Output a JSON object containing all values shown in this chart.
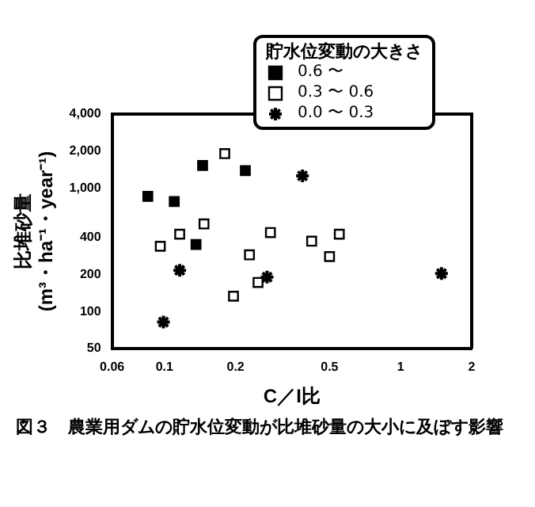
{
  "chart_data": {
    "type": "scatter",
    "xlabel": "C／I比",
    "ylabel": "比堆砂量 (m³・ha⁻¹・year⁻¹)",
    "legend_title": "貯水位変動の大きさ",
    "legend": "top right",
    "log": "xy",
    "grid": false,
    "xlim": [
      0.06,
      2
    ],
    "xticks": [
      0.06,
      0.1,
      0.2,
      0.5,
      1,
      2
    ],
    "ylim": [
      50,
      4000
    ],
    "yticks": [
      50,
      100,
      200,
      400,
      {
        "value": 1000,
        "label": "1,000"
      },
      {
        "value": 2000,
        "label": "2,000"
      },
      {
        "value": 4000,
        "label": "4,000"
      }
    ],
    "series": [
      {
        "name": "0.6 〜",
        "color": "#000000",
        "marker": "square",
        "x": [
          0.085,
          0.11,
          0.145,
          0.22,
          0.136
        ],
        "values": [
          860,
          780,
          1530,
          1390,
          350
        ]
      },
      {
        "name": "0.3 〜 0.6",
        "color": "#ffffff",
        "marker": "square",
        "x": [
          0.18,
          0.096,
          0.116,
          0.147,
          0.229,
          0.196,
          0.249,
          0.281,
          0.42,
          0.55,
          0.5
        ],
        "values": [
          1910,
          338,
          424,
          513,
          288,
          133,
          172,
          437,
          372,
          424,
          279
        ]
      },
      {
        "name": "0.0 〜 0.3",
        "color": "#000000",
        "marker": "cross",
        "x": [
          0.116,
          0.099,
          0.384,
          0.272,
          1.49
        ],
        "values": [
          216,
          82,
          1260,
          190,
          203
        ]
      }
    ],
    "annotations": [
      "図３　農業用ダムの貯水位変動が比堆砂量の大小に及ぼす影響"
    ]
  }
}
